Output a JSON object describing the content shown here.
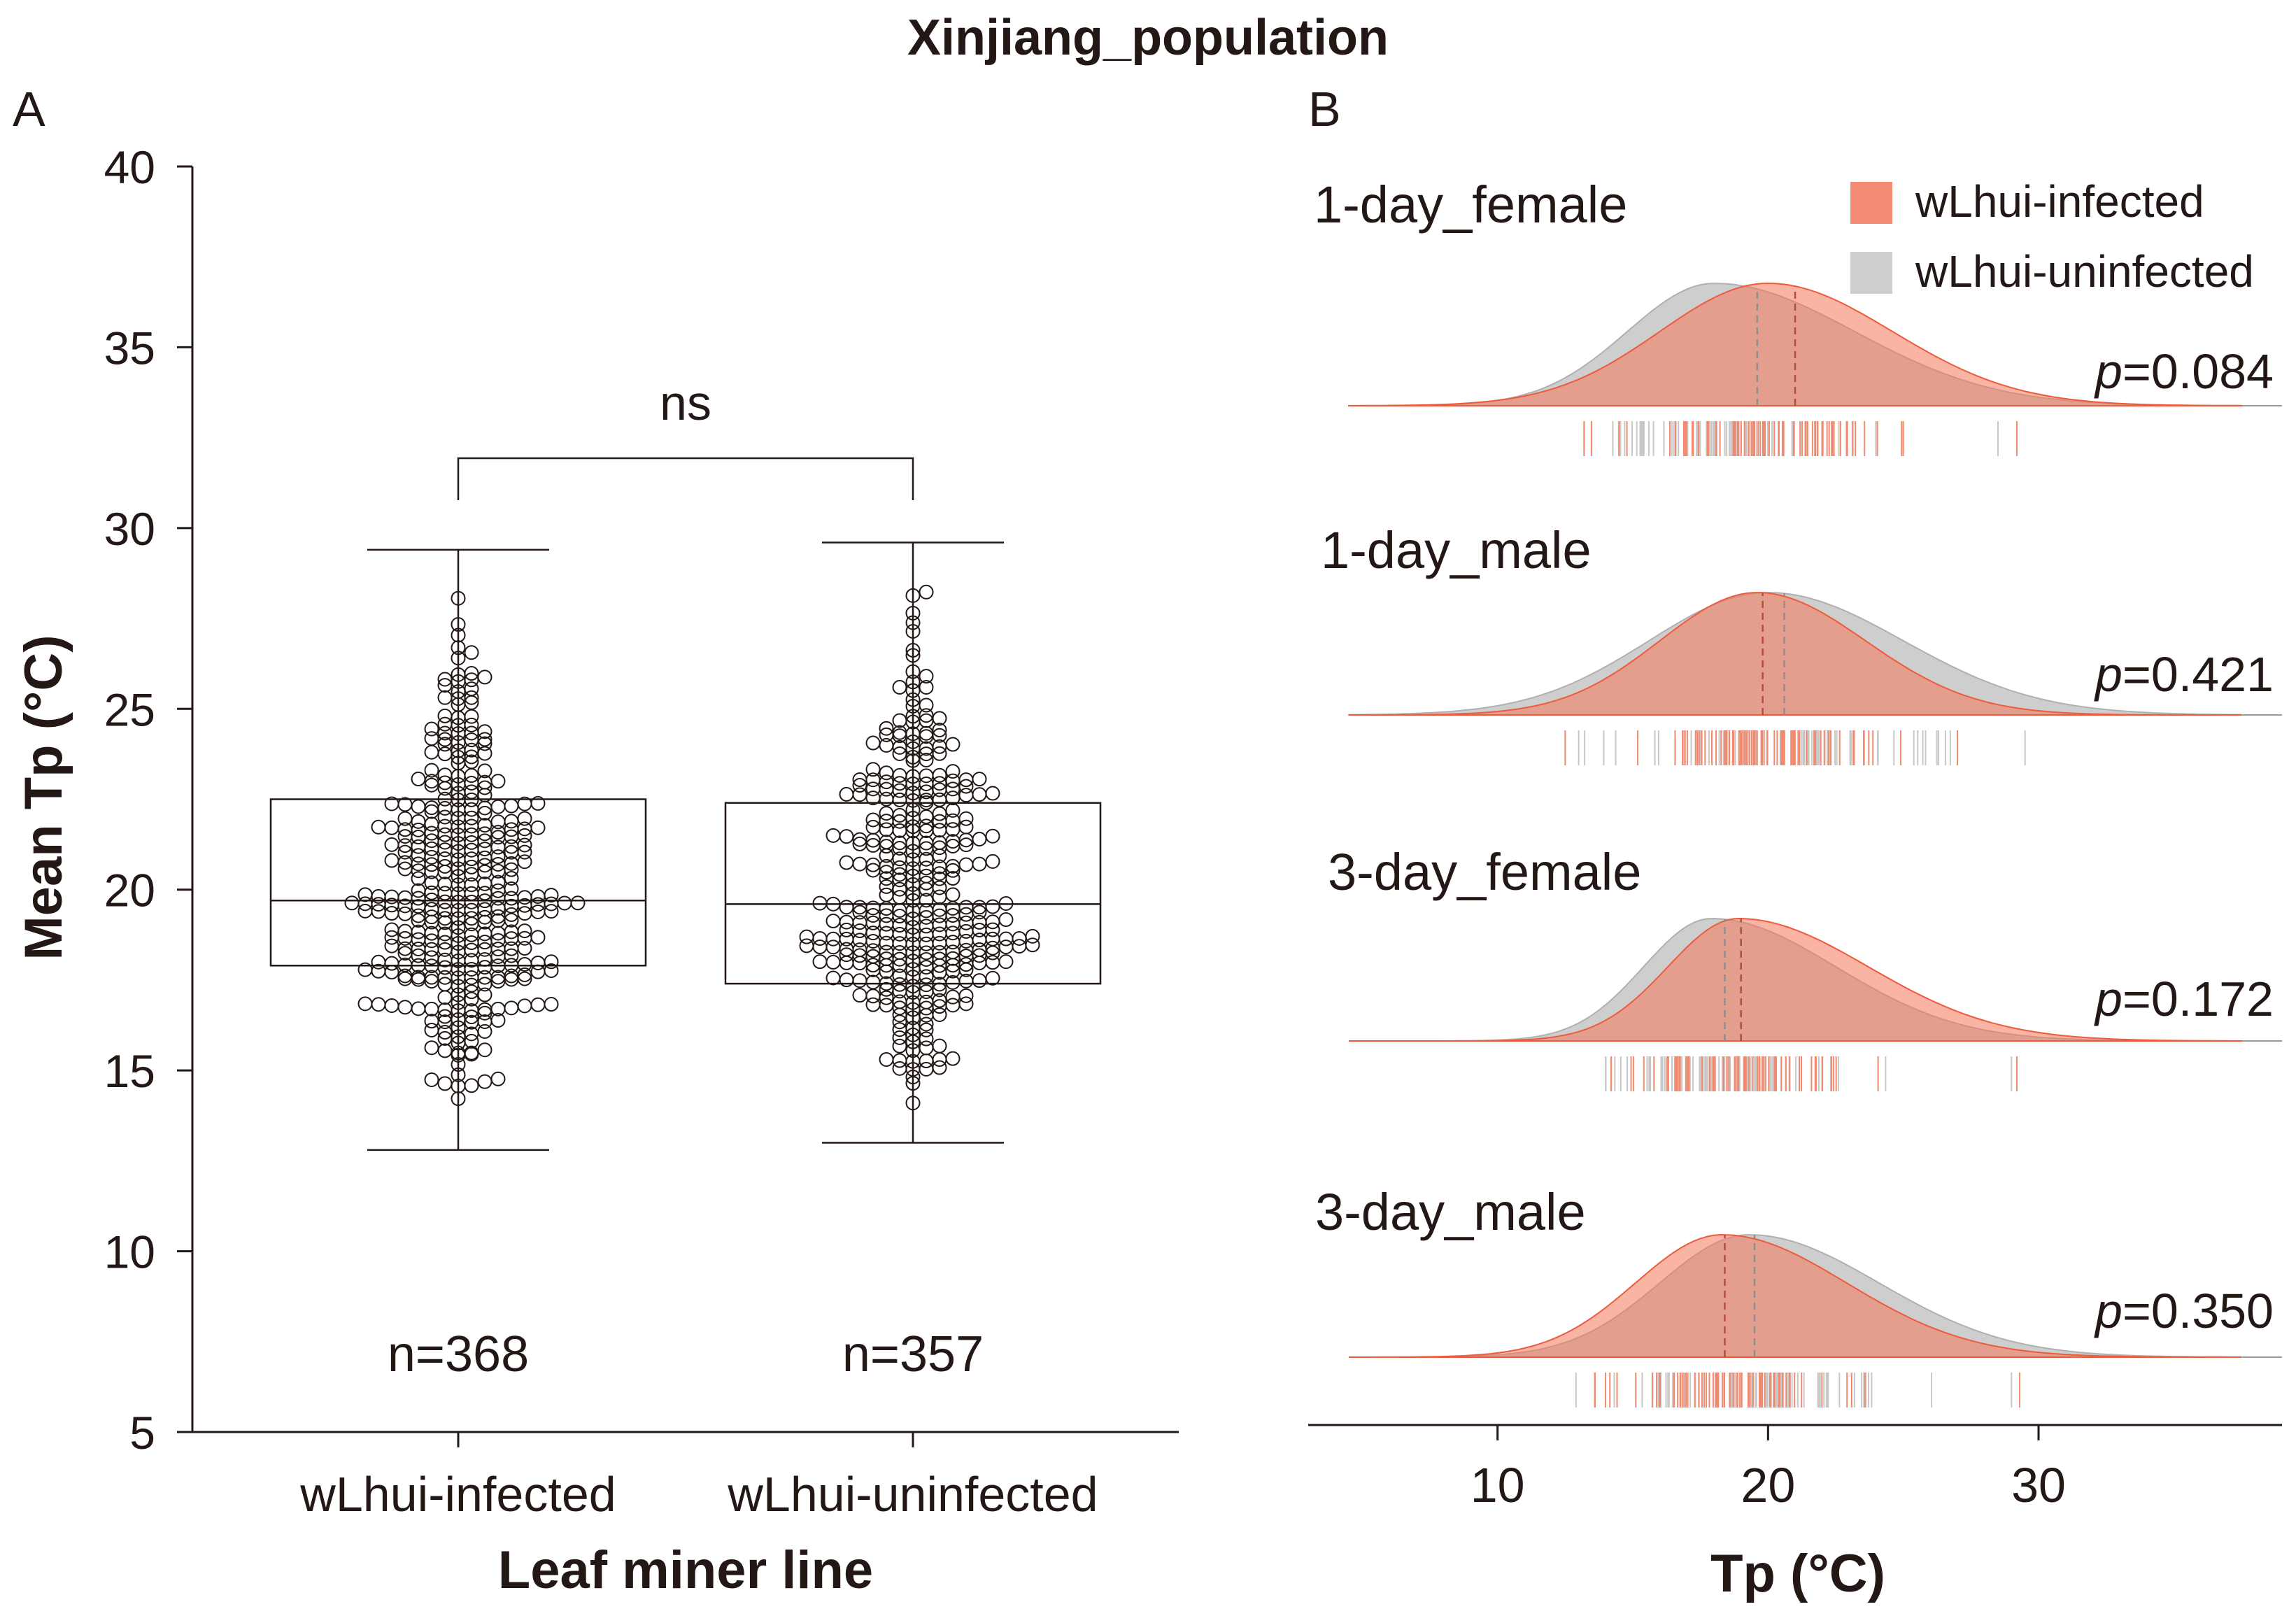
{
  "figure": {
    "title": "Xinjiang_population",
    "colors": {
      "infected": "#f4775a",
      "uninfected": "#bdbdbd",
      "overlap": "#d5a293",
      "axis": "#231815"
    }
  },
  "chart_data": [
    {
      "panel": "A",
      "type": "box",
      "ylabel": "Mean Tp (°C)",
      "xlabel": "Leaf miner line",
      "ylim": [
        5,
        40
      ],
      "yticks": [
        5,
        10,
        15,
        20,
        25,
        30,
        35,
        40
      ],
      "significance": "ns",
      "groups": [
        {
          "name": "wLhui-infected",
          "n_label": "n=368",
          "n": 368,
          "min": 12.8,
          "q1": 17.9,
          "median": 19.7,
          "q3": 22.5,
          "max": 29.4
        },
        {
          "name": "wLhui-uninfected",
          "n_label": "n=357",
          "n": 357,
          "min": 13.0,
          "q1": 17.4,
          "median": 19.6,
          "q3": 22.4,
          "max": 29.6
        }
      ]
    },
    {
      "panel": "B",
      "type": "area",
      "xlabel": "Tp (°C)",
      "xlim": [
        3,
        39
      ],
      "xticks": [
        10,
        20,
        30
      ],
      "legend": [
        "wLhui-infected",
        "wLhui-uninfected"
      ],
      "series": [
        {
          "name": "1-day_female",
          "p_label": "p",
          "p_value": "=0.084",
          "infected": {
            "mean": 21.0,
            "peak": 20.0,
            "sd_left": 4.0,
            "sd_right": 4.6,
            "range": [
              13.2,
              29.2
            ]
          },
          "uninfected": {
            "mean": 19.6,
            "peak": 18.0,
            "sd_left": 3.2,
            "sd_right": 5.2,
            "range": [
              13.2,
              28.5
            ]
          }
        },
        {
          "name": "1-day_male",
          "p_label": "p",
          "p_value": "=0.421",
          "infected": {
            "mean": 19.8,
            "peak": 19.6,
            "sd_left": 3.6,
            "sd_right": 4.0,
            "range": [
              12.5,
              27.0
            ]
          },
          "uninfected": {
            "mean": 20.6,
            "peak": 20.0,
            "sd_left": 4.4,
            "sd_right": 5.0,
            "range": [
              13.0,
              29.5
            ]
          }
        },
        {
          "name": "3-day_female",
          "p_label": "p",
          "p_value": "=0.172",
          "infected": {
            "mean": 19.0,
            "peak": 18.9,
            "sd_left": 2.6,
            "sd_right": 4.8,
            "range": [
              14.2,
              29.2
            ]
          },
          "uninfected": {
            "mean": 18.4,
            "peak": 17.9,
            "sd_left": 2.5,
            "sd_right": 4.6,
            "range": [
              14.0,
              29.0
            ]
          }
        },
        {
          "name": "3-day_male",
          "p_label": "p",
          "p_value": "=0.350",
          "infected": {
            "mean": 18.4,
            "peak": 18.3,
            "sd_left": 3.2,
            "sd_right": 4.6,
            "range": [
              13.6,
              29.3
            ]
          },
          "uninfected": {
            "mean": 19.5,
            "peak": 19.3,
            "sd_left": 3.3,
            "sd_right": 4.8,
            "range": [
              12.9,
              29.0
            ]
          }
        }
      ]
    }
  ]
}
